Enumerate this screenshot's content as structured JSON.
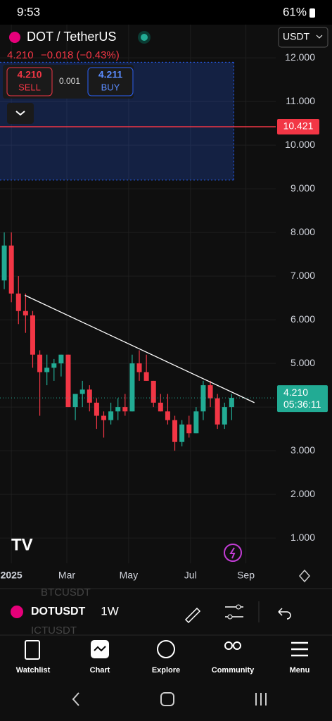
{
  "status_bar": {
    "time": "9:53",
    "battery": "61%"
  },
  "header": {
    "symbol": "DOT / TetherUS",
    "price": "4.210",
    "change": "−0.018 (−0.43%)",
    "currency": "USDT"
  },
  "trade": {
    "sell_price": "4.210",
    "sell": "SELL",
    "spread": "0.001",
    "buy_price": "4.211",
    "buy": "BUY"
  },
  "chart_data": {
    "type": "candlestick",
    "up_color": "#22ab94",
    "down_color": "#f23645",
    "x": [
      0,
      1,
      2,
      3,
      4,
      5,
      6,
      7,
      8,
      9,
      10,
      11,
      12,
      13,
      14,
      15,
      16,
      17,
      18,
      19,
      20,
      21,
      22,
      23,
      24,
      25,
      26,
      27,
      28,
      29,
      30,
      31,
      32
    ],
    "open": [
      6.9,
      7.7,
      6.6,
      6.2,
      6.1,
      5.2,
      4.8,
      4.9,
      5.0,
      5.2,
      4.0,
      4.3,
      4.4,
      4.1,
      3.8,
      3.7,
      3.9,
      4.0,
      3.9,
      5.0,
      4.8,
      4.6,
      4.1,
      3.9,
      3.7,
      3.2,
      3.6,
      3.4,
      3.9,
      4.5,
      4.2,
      3.6,
      4.0
    ],
    "high": [
      8.0,
      8.0,
      7.0,
      6.6,
      6.2,
      5.3,
      5.2,
      5.1,
      5.2,
      5.2,
      4.3,
      4.6,
      4.5,
      4.2,
      3.9,
      4.1,
      4.2,
      4.3,
      5.2,
      5.3,
      5.2,
      4.6,
      4.3,
      4.3,
      3.8,
      3.7,
      3.8,
      4.0,
      4.6,
      4.6,
      4.3,
      4.1,
      4.3
    ],
    "low": [
      6.7,
      6.4,
      5.9,
      5.7,
      4.9,
      3.8,
      4.5,
      4.6,
      4.7,
      4.0,
      3.7,
      4.0,
      3.9,
      3.5,
      3.3,
      3.6,
      3.7,
      3.8,
      3.9,
      4.6,
      4.6,
      4.0,
      3.9,
      3.6,
      3.0,
      3.1,
      3.3,
      3.4,
      3.7,
      4.0,
      3.5,
      3.5,
      3.7
    ],
    "close": [
      7.7,
      6.6,
      6.2,
      6.1,
      5.2,
      4.8,
      4.9,
      5.0,
      5.2,
      4.0,
      4.3,
      4.4,
      4.1,
      3.8,
      3.7,
      3.9,
      4.0,
      3.9,
      5.0,
      4.8,
      4.6,
      4.1,
      3.9,
      3.7,
      3.2,
      3.6,
      3.4,
      3.9,
      4.5,
      4.2,
      3.6,
      4.0,
      4.21
    ],
    "xlim": [
      -0.6,
      38.2
    ],
    "xticks": [
      {
        "value": 1,
        "label": "2025"
      },
      {
        "value": 8.8,
        "label": "Mar"
      },
      {
        "value": 17.5,
        "label": "May"
      },
      {
        "value": 26.2,
        "label": "Jul"
      },
      {
        "value": 34,
        "label": "Sep"
      }
    ],
    "ylim": [
      -0.16,
      12.76
    ],
    "yticks": [
      {
        "value": 1,
        "label": "1.000"
      },
      {
        "value": 2,
        "label": "2.000"
      },
      {
        "value": 3,
        "label": "3.000"
      },
      {
        "value": 4,
        "label": "4.000"
      },
      {
        "value": 5,
        "label": "5.000"
      },
      {
        "value": 6,
        "label": "6.000"
      },
      {
        "value": 7,
        "label": "7.000"
      },
      {
        "value": 8,
        "label": "8.000"
      },
      {
        "value": 9,
        "label": "9.000"
      },
      {
        "value": 10,
        "label": "10.000"
      },
      {
        "value": 11,
        "label": "11.000"
      },
      {
        "value": 12,
        "label": "12.000"
      }
    ],
    "grid": true,
    "zone": {
      "x": [
        -0.6,
        32.3
      ],
      "y": [
        9.2,
        11.9
      ]
    },
    "trendline": {
      "x": [
        2.9,
        35.2
      ],
      "y": [
        6.56,
        4.1
      ]
    },
    "alert": {
      "value": 10.421,
      "label": "10.421"
    },
    "last_price": {
      "value": 4.21,
      "label": "4.210",
      "countdown": "05:36:11"
    }
  },
  "toolbar": {
    "symbol": "DOTUSDT",
    "interval": "1W",
    "ghost_1": "BTCUSDT",
    "ghost_2": "ICTUSDT"
  },
  "nav": {
    "items": [
      "Watchlist",
      "Chart",
      "Explore",
      "Community",
      "Menu"
    ]
  }
}
